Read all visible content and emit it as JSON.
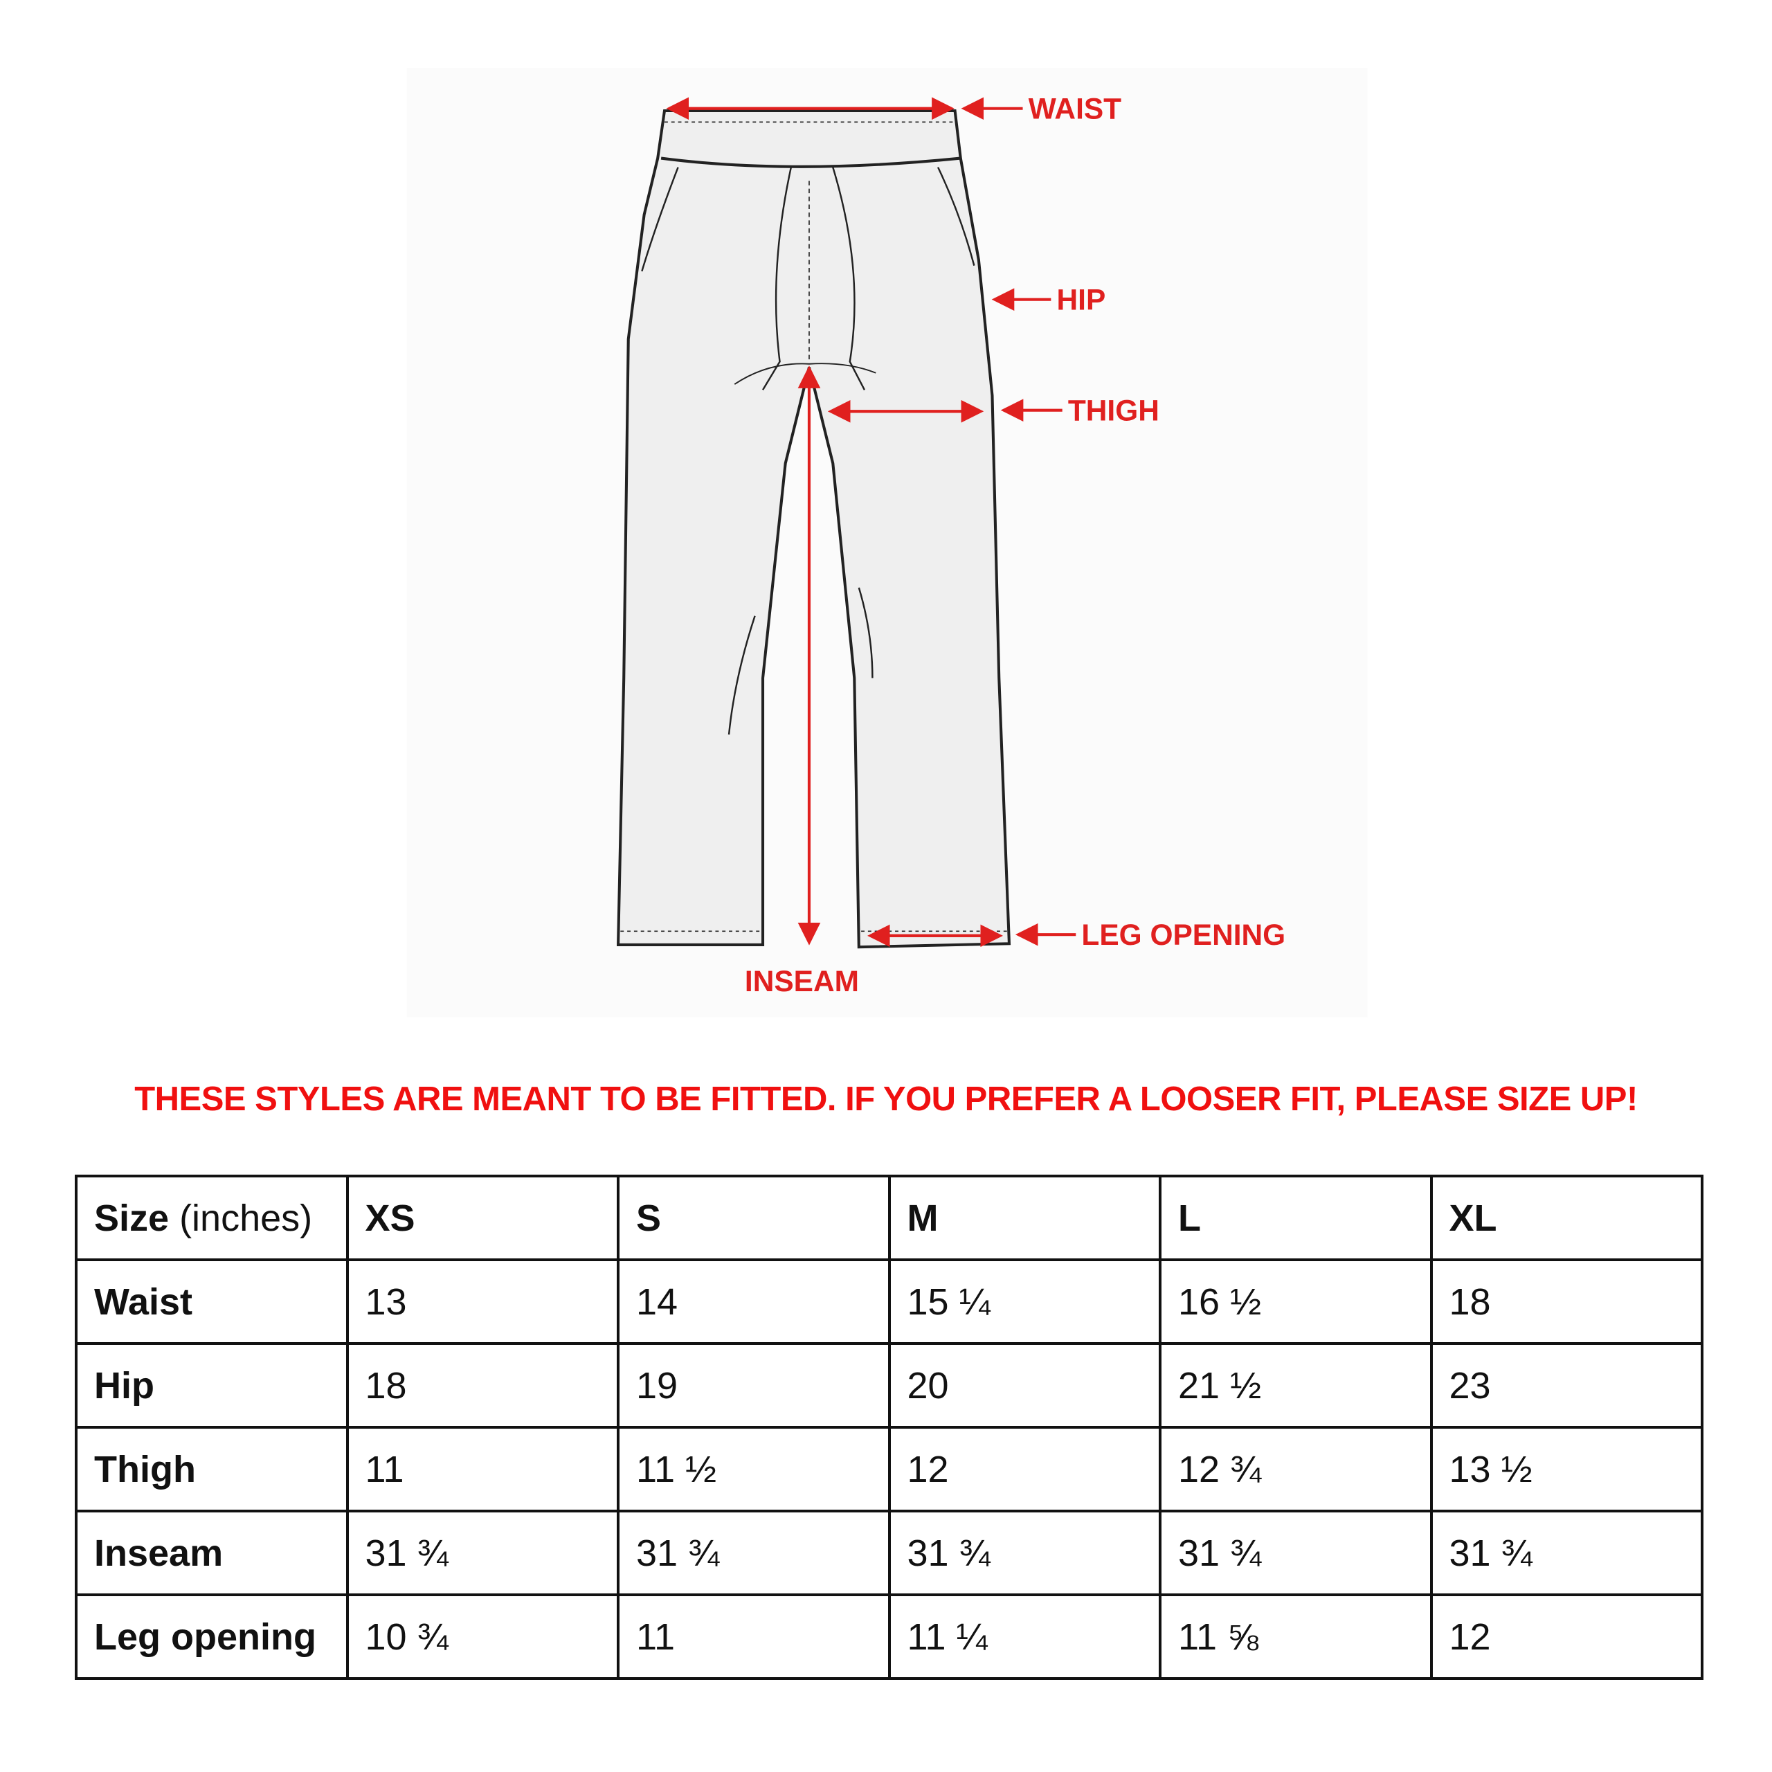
{
  "diagram": {
    "labels": {
      "waist": "WAIST",
      "hip": "HIP",
      "thigh": "THIGH",
      "inseam": "INSEAM",
      "leg_opening": "LEG OPENING"
    },
    "accent_color": "#e0201f"
  },
  "notice": "THESE STYLES ARE MEANT TO BE FITTED. IF YOU PREFER A LOOSER FIT, PLEASE SIZE UP!",
  "table": {
    "header": {
      "label_bold": "Size",
      "label_unit": "(inches)",
      "sizes": [
        "XS",
        "S",
        "M",
        "L",
        "XL"
      ]
    },
    "rows": [
      {
        "label": "Waist",
        "values": [
          "13",
          "14",
          "15 ¼",
          "16 ½",
          "18"
        ]
      },
      {
        "label": "Hip",
        "values": [
          "18",
          "19",
          "20",
          "21 ½",
          "23"
        ]
      },
      {
        "label": "Thigh",
        "values": [
          "11",
          "11 ½",
          "12",
          "12 ¾",
          "13 ½"
        ]
      },
      {
        "label": "Inseam",
        "values": [
          "31 ¾",
          "31 ¾",
          "31 ¾",
          "31 ¾",
          "31 ¾"
        ]
      },
      {
        "label": "Leg opening",
        "values": [
          "10 ¾",
          "11",
          "11 ¼",
          "11 ⅝",
          "12"
        ]
      }
    ]
  }
}
